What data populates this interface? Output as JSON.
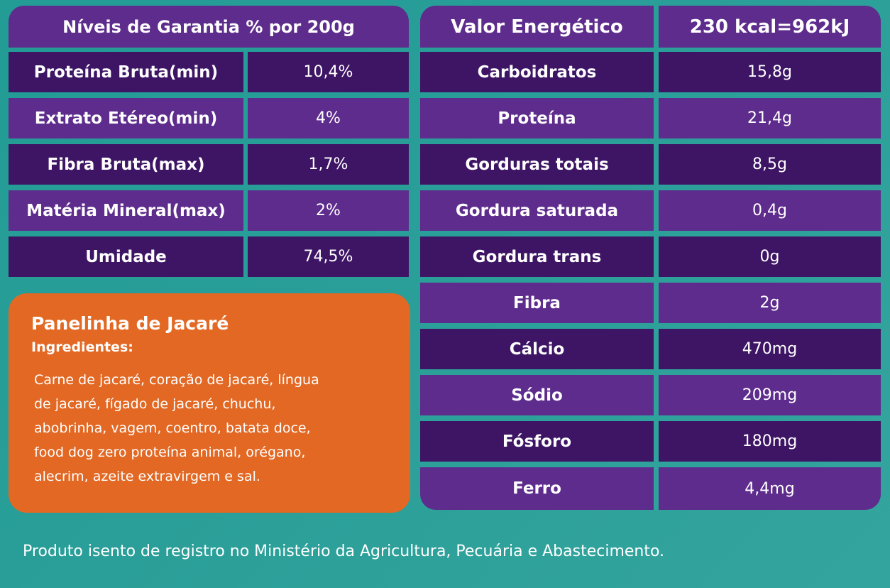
{
  "guarantee_table": {
    "header": "Níveis de Garantia % por 200g",
    "rows": [
      {
        "label": "Proteína Bruta(min)",
        "value": "10,4%"
      },
      {
        "label": "Extrato Etéreo(min)",
        "value": "4%"
      },
      {
        "label": "Fibra Bruta(max)",
        "value": "1,7%"
      },
      {
        "label": "Matéria Mineral(max)",
        "value": "2%"
      },
      {
        "label": "Umidade",
        "value": "74,5%"
      }
    ]
  },
  "energy_table": {
    "header_label": "Valor Energético",
    "header_value": "230 kcal=962kJ",
    "rows": [
      {
        "label": "Carboidratos",
        "value": "15,8g"
      },
      {
        "label": "Proteína",
        "value": "21,4g"
      },
      {
        "label": "Gorduras totais",
        "value": "8,5g"
      },
      {
        "label": "Gordura saturada",
        "value": "0,4g"
      },
      {
        "label": "Gordura trans",
        "value": "0g"
      },
      {
        "label": "Fibra",
        "value": "2g"
      },
      {
        "label": "Cálcio",
        "value": "470mg"
      },
      {
        "label": "Sódio",
        "value": "209mg"
      },
      {
        "label": "Fósforo",
        "value": "180mg"
      },
      {
        "label": "Ferro",
        "value": "4,4mg"
      }
    ]
  },
  "recipe": {
    "title": "Panelinha de Jacaré",
    "ingredients_label": "Ingredientes:",
    "ingredients_lines": [
      "Carne de jacaré, coração de jacaré, língua",
      "de jacaré, fígado de jacaré, chuchu,",
      "abobrinha, vagem, coentro, batata doce,",
      "food dog zero proteína animal, orégano,",
      "alecrim, azeite extravirgem e sal."
    ]
  },
  "footer": "Produto isento de registro no Ministério da Agricultura, Pecuária e Abastecimento.",
  "colors": {
    "background": "#2a9e98",
    "row_dark": "#3d1564",
    "row_mid": "#5e2c8c",
    "recipe_box": "#e26823",
    "text": "#ffffff"
  }
}
